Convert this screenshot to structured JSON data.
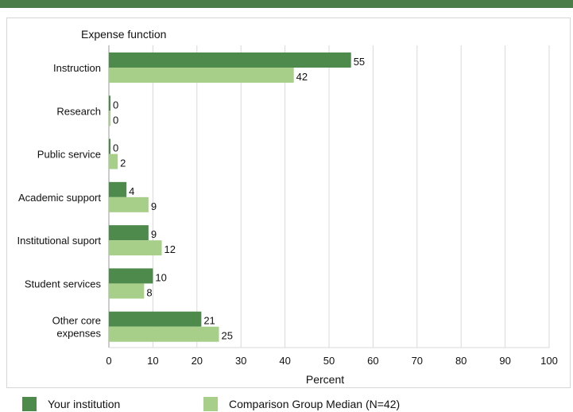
{
  "colors": {
    "header_bar": "#4a7d48",
    "series_primary": "#4e8a4c",
    "series_comparison": "#a8cf8a",
    "grid": "#d9d9d9",
    "frame": "#d6d6d6",
    "text": "#111111"
  },
  "chart_data": {
    "type": "bar",
    "orientation": "horizontal",
    "title": "",
    "category_axis_title": "Expense function",
    "xlabel": "Percent",
    "ylabel": "Expense function",
    "xlim": [
      0,
      100
    ],
    "x_ticks": [
      0,
      10,
      20,
      30,
      40,
      50,
      60,
      70,
      80,
      90,
      100
    ],
    "grid": true,
    "legend_position": "bottom",
    "categories": [
      [
        "Instruction"
      ],
      [
        "Research"
      ],
      [
        "Public service"
      ],
      [
        "Academic support"
      ],
      [
        "Institutional suport"
      ],
      [
        "Student services"
      ],
      [
        "Other core",
        "expenses"
      ]
    ],
    "series": [
      {
        "name": "Your institution",
        "color": "#4e8a4c",
        "values": [
          55,
          0,
          0,
          4,
          9,
          10,
          21
        ]
      },
      {
        "name": "Comparison Group Median (N=42)",
        "color": "#a8cf8a",
        "values": [
          42,
          0,
          2,
          9,
          12,
          8,
          25
        ]
      }
    ]
  }
}
